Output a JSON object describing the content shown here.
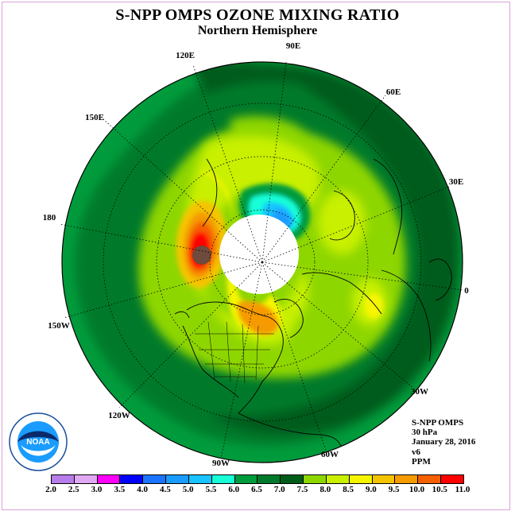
{
  "title": "S-NPP OMPS OZONE MIXING RATIO",
  "subtitle": "Northern Hemisphere",
  "longitude_labels": [
    "90E",
    "60E",
    "30E",
    "0",
    "30W",
    "60W",
    "90W",
    "120W",
    "150W",
    "180",
    "150E",
    "120E"
  ],
  "info": {
    "instrument": "S-NPP OMPS",
    "level": "30 hPa",
    "date": "January 28, 2016",
    "version": "v6",
    "units": "PPM"
  },
  "logo": {
    "text": "NOAA",
    "ring_text": "NATIONAL OCEANIC AND ATMOSPHERIC ADMINISTRATION · U.S. DEPARTMENT OF COMMERCE"
  },
  "colorbar": {
    "ticks": [
      "2.0",
      "2.5",
      "3.0",
      "3.5",
      "4.0",
      "4.5",
      "5.0",
      "5.5",
      "6.0",
      "6.5",
      "7.0",
      "7.5",
      "8.0",
      "8.5",
      "9.0",
      "9.5",
      "10.0",
      "10.5",
      "11.0"
    ],
    "colors": [
      "#b77de8",
      "#e1a9f4",
      "#ff00ff",
      "#0000ff",
      "#1c73ff",
      "#1a9cff",
      "#18c3ff",
      "#18ffd8",
      "#009b3c",
      "#007a2a",
      "#005c1a",
      "#8ed600",
      "#c8f000",
      "#f6f600",
      "#f5c400",
      "#f59a00",
      "#f56000",
      "#ff0000",
      "#6e4b3c"
    ]
  }
}
